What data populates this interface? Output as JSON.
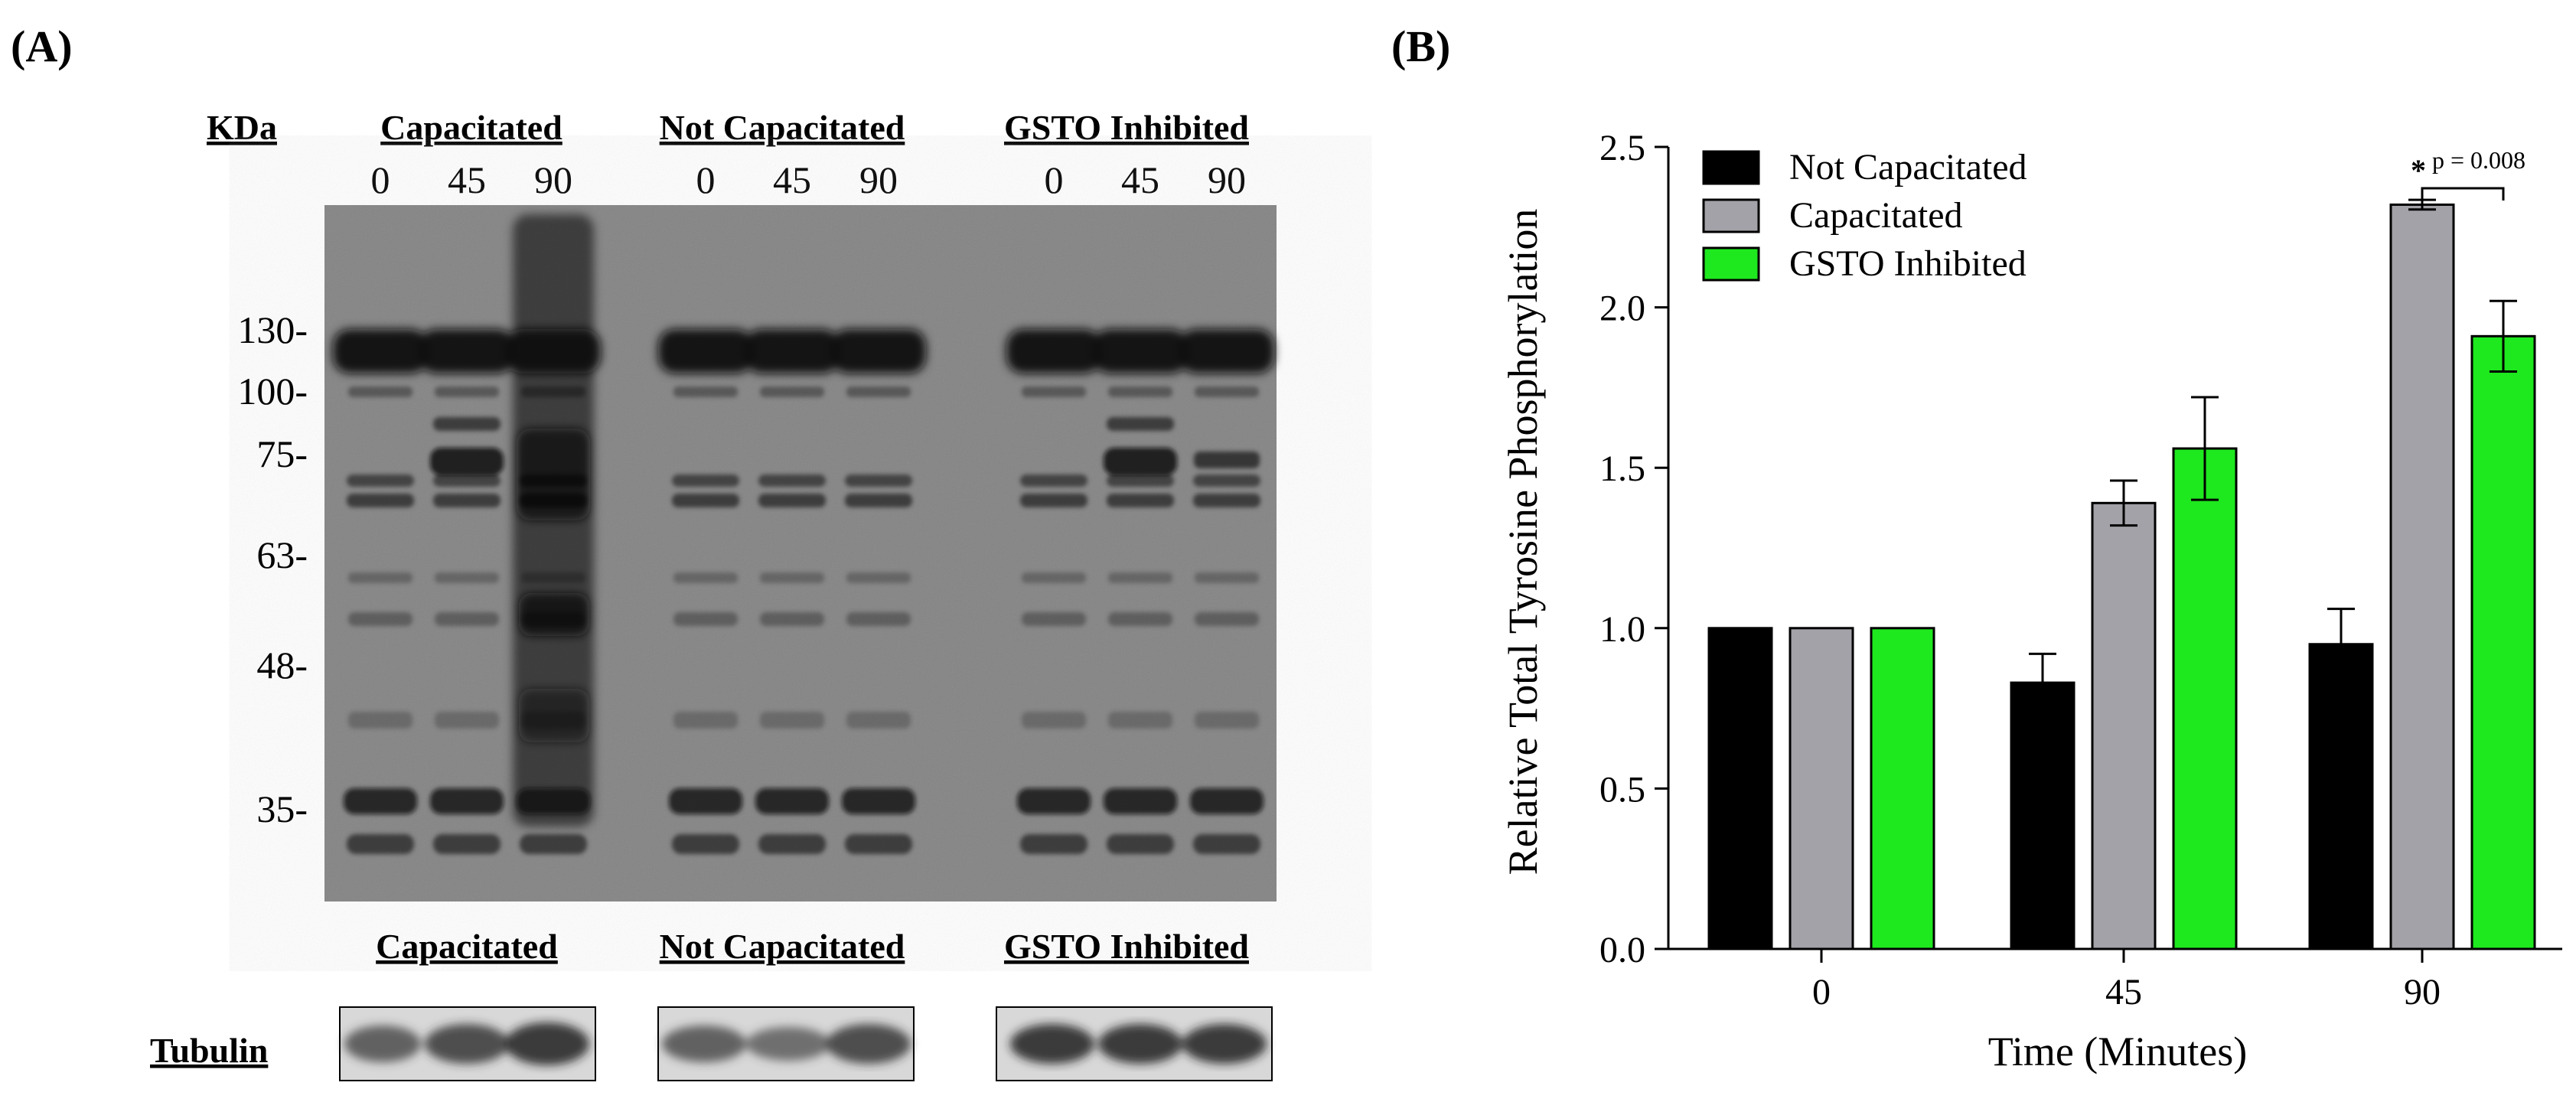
{
  "panel_a": {
    "label": "(A)",
    "kda_label": "KDa",
    "groups": [
      {
        "name": "Capacitated",
        "lanes": [
          "0",
          "45",
          "90"
        ]
      },
      {
        "name": "Not Capacitated",
        "lanes": [
          "0",
          "45",
          "90"
        ]
      },
      {
        "name": "GSTO Inhibited",
        "lanes": [
          "0",
          "45",
          "90"
        ]
      }
    ],
    "markers": [
      "130-",
      "100-",
      "75-",
      "63-",
      "48-",
      "35-"
    ],
    "tubulin_groups": [
      "Capacitated",
      "Not Capacitated",
      "GSTO Inhibited"
    ],
    "tubulin_label": "Tubulin",
    "colors": {
      "blot_background": "#838383",
      "band": "#0a0a0a",
      "tubulin_background": "#d8d8d8"
    }
  },
  "panel_b": {
    "label": "(B)"
  },
  "chart_data": {
    "type": "bar",
    "title": "",
    "xlabel": "Time (Minutes)",
    "ylabel": "Relative Total Tyrosine Phosphorylation",
    "categories": [
      "0",
      "45",
      "90"
    ],
    "ylim": [
      0,
      2.5
    ],
    "yticks": [
      "0.0",
      "0.5",
      "1.0",
      "1.5",
      "2.0",
      "2.5"
    ],
    "series": [
      {
        "name": "Not Capacitated",
        "color": "#000000",
        "values": [
          1.0,
          0.83,
          0.95
        ],
        "errors": [
          0.005,
          0.09,
          0.11
        ]
      },
      {
        "name": "Capacitated",
        "color": "#a3a2a8",
        "values": [
          1.0,
          1.39,
          2.32
        ],
        "errors": [
          0.005,
          0.07,
          0.015
        ]
      },
      {
        "name": "GSTO Inhibited",
        "color": "#1ee81e",
        "values": [
          1.0,
          1.56,
          1.91
        ],
        "errors": [
          0.005,
          0.16,
          0.11
        ]
      }
    ],
    "legend": "top-left",
    "grid": false,
    "annotation": {
      "star": "*",
      "text": "p = 0.008",
      "category": "90",
      "between": [
        "Capacitated",
        "GSTO Inhibited"
      ]
    }
  }
}
